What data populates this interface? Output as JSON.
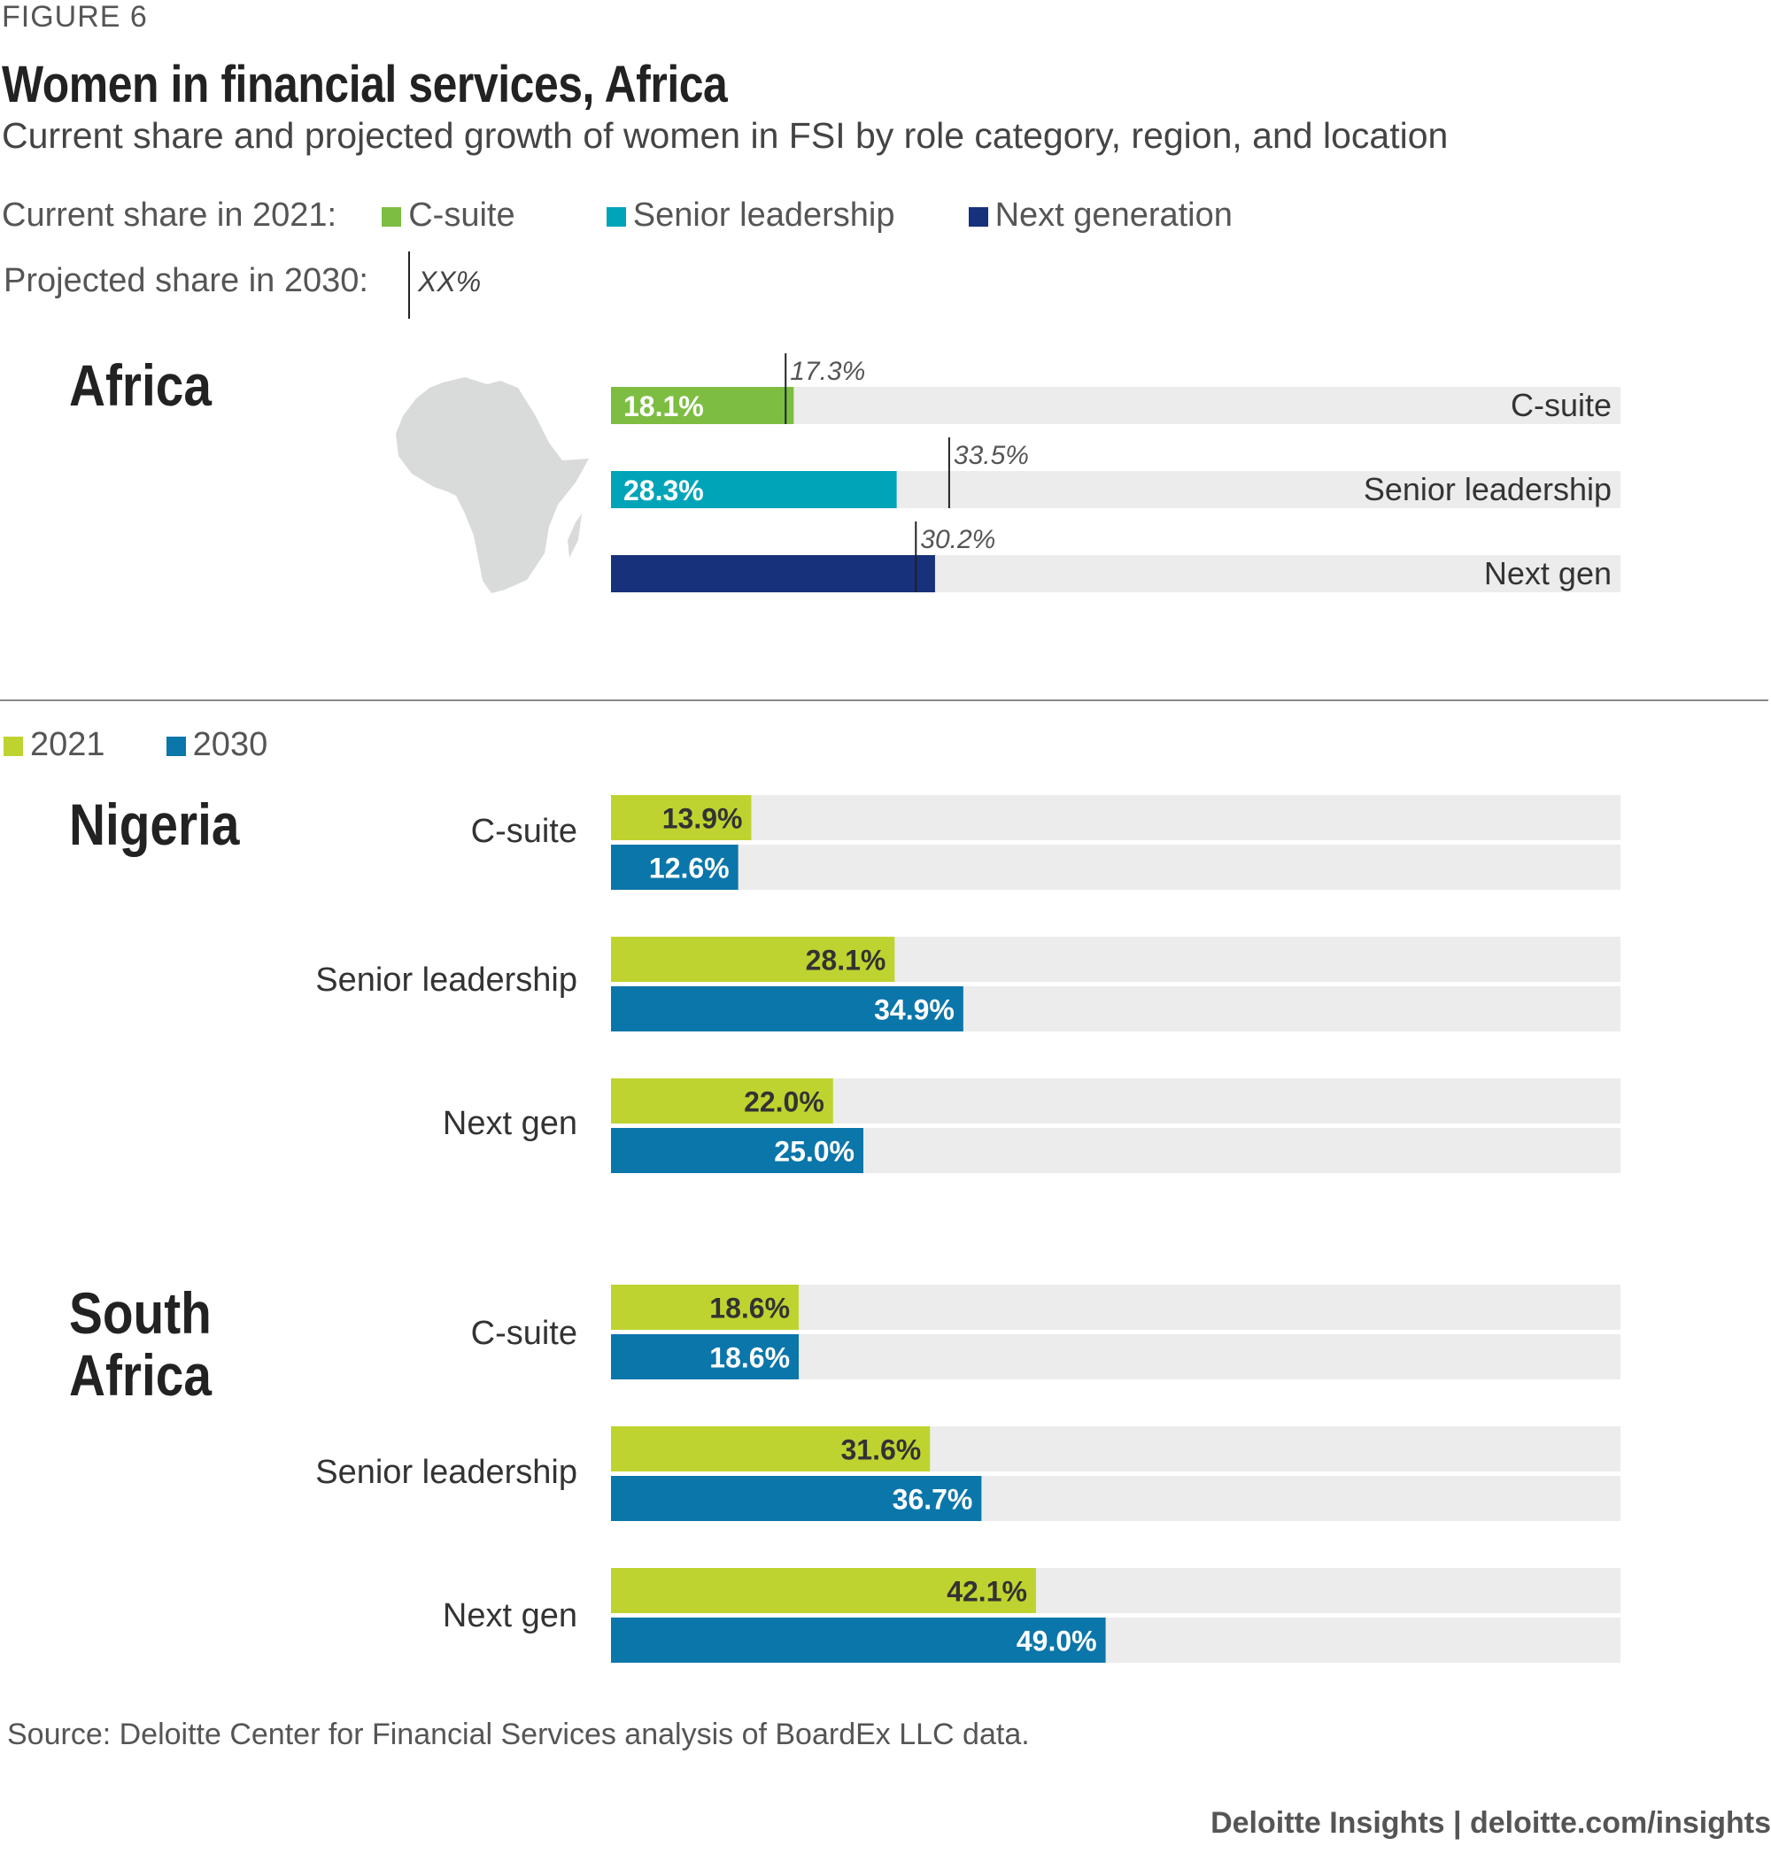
{
  "figure_label": "FIGURE 6",
  "title": "Women in financial services, Africa",
  "subtitle": "Current share and projected growth of women in FSI by role category, region, and location",
  "legend_top": {
    "current_label": "Current share in 2021:",
    "items": [
      {
        "label": "C-suite",
        "color": "#7dbd42"
      },
      {
        "label": "Senior leadership",
        "color": "#00a4b8"
      },
      {
        "label": "Next generation",
        "color": "#17317a"
      }
    ],
    "projected_label": "Projected share in 2030:",
    "projected_marker": "XX%"
  },
  "legend_bottom": {
    "items": [
      {
        "label": "2021",
        "color": "#bfd330"
      },
      {
        "label": "2030",
        "color": "#0b76aa"
      }
    ]
  },
  "source": "Source: Deloitte Center for Financial Services analysis of BoardEx LLC data.",
  "credit": "Deloitte Insights | deloitte.com/insights",
  "chart_data": [
    {
      "type": "bar",
      "region": "Africa",
      "categories": [
        "C-suite",
        "Senior leadership",
        "Next gen"
      ],
      "series": [
        {
          "name": "Current share in 2021",
          "values": [
            18.1,
            28.3,
            32.1
          ],
          "labels": [
            "18.1%",
            "28.3%",
            ""
          ],
          "colors": [
            "#7dbd42",
            "#00a4b8",
            "#17317a"
          ]
        },
        {
          "name": "Projected share in 2030",
          "values": [
            17.3,
            33.5,
            30.2
          ],
          "labels": [
            "17.3%",
            "33.5%",
            "30.2%"
          ]
        }
      ],
      "xlim": [
        0,
        100
      ]
    },
    {
      "type": "bar",
      "region": "Nigeria",
      "categories": [
        "C-suite",
        "Senior leadership",
        "Next gen"
      ],
      "series": [
        {
          "name": "2021",
          "values": [
            13.9,
            28.1,
            22.0
          ],
          "labels": [
            "13.9%",
            "28.1%",
            "22.0%"
          ]
        },
        {
          "name": "2030",
          "values": [
            12.6,
            34.9,
            25.0
          ],
          "labels": [
            "12.6%",
            "34.9%",
            "25.0%"
          ]
        }
      ],
      "xlim": [
        0,
        100
      ]
    },
    {
      "type": "bar",
      "region": "South Africa",
      "categories": [
        "C-suite",
        "Senior leadership",
        "Next gen"
      ],
      "series": [
        {
          "name": "2021",
          "values": [
            18.6,
            31.6,
            42.1
          ],
          "labels": [
            "18.6%",
            "31.6%",
            "42.1%"
          ]
        },
        {
          "name": "2030",
          "values": [
            18.6,
            36.7,
            49.0
          ],
          "labels": [
            "18.6%",
            "36.7%",
            "49.0%"
          ]
        }
      ],
      "xlim": [
        0,
        100
      ]
    }
  ]
}
